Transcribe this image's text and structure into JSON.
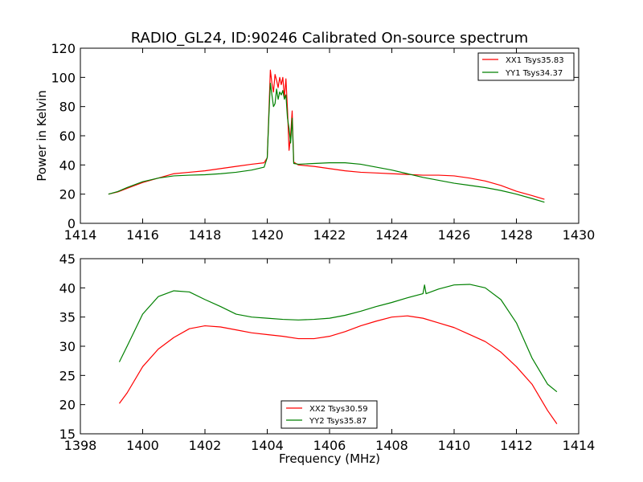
{
  "chart_data": [
    {
      "type": "line",
      "title": "RADIO_GL24, ID:90246 Calibrated On-source spectrum",
      "xlabel": "",
      "ylabel": "Power in Kelvin",
      "xlim": [
        1414,
        1430
      ],
      "ylim": [
        0,
        120
      ],
      "xticks": [
        "1414",
        "1416",
        "1418",
        "1420",
        "1422",
        "1424",
        "1426",
        "1428",
        "1430"
      ],
      "yticks": [
        "0",
        "20",
        "40",
        "60",
        "80",
        "100",
        "120"
      ],
      "grid": false,
      "legend_position": "top-right",
      "series": [
        {
          "name": "XX1 Tsys35.83",
          "color": "#ff0000",
          "points": [
            [
              1414.9,
              20
            ],
            [
              1415.2,
              21.5
            ],
            [
              1415.5,
              24
            ],
            [
              1416,
              28
            ],
            [
              1416.5,
              31
            ],
            [
              1417,
              34
            ],
            [
              1417.5,
              35
            ],
            [
              1418,
              36
            ],
            [
              1418.5,
              37.5
            ],
            [
              1419,
              39
            ],
            [
              1419.5,
              40.5
            ],
            [
              1419.9,
              41.5
            ],
            [
              1420.0,
              45
            ],
            [
              1420.05,
              75
            ],
            [
              1420.1,
              105
            ],
            [
              1420.15,
              96
            ],
            [
              1420.2,
              90
            ],
            [
              1420.25,
              102
            ],
            [
              1420.3,
              98
            ],
            [
              1420.35,
              93
            ],
            [
              1420.4,
              100
            ],
            [
              1420.45,
              95
            ],
            [
              1420.5,
              100
            ],
            [
              1420.55,
              86
            ],
            [
              1420.6,
              99
            ],
            [
              1420.65,
              78
            ],
            [
              1420.7,
              50
            ],
            [
              1420.75,
              60
            ],
            [
              1420.8,
              77
            ],
            [
              1420.85,
              42
            ],
            [
              1421,
              40
            ],
            [
              1421.5,
              39
            ],
            [
              1422,
              37.5
            ],
            [
              1422.5,
              36
            ],
            [
              1423,
              35
            ],
            [
              1423.5,
              34.5
            ],
            [
              1424,
              34
            ],
            [
              1424.5,
              33.5
            ],
            [
              1425,
              33
            ],
            [
              1425.5,
              33
            ],
            [
              1426,
              32.5
            ],
            [
              1426.5,
              31
            ],
            [
              1427,
              29
            ],
            [
              1427.5,
              26
            ],
            [
              1428,
              22
            ],
            [
              1428.5,
              19
            ],
            [
              1428.9,
              16.5
            ]
          ]
        },
        {
          "name": "YY1 Tsys34.37",
          "color": "#008000",
          "points": [
            [
              1414.9,
              20
            ],
            [
              1415.2,
              21.8
            ],
            [
              1415.5,
              24.5
            ],
            [
              1416,
              28.5
            ],
            [
              1416.5,
              31
            ],
            [
              1417,
              32.5
            ],
            [
              1417.5,
              33
            ],
            [
              1418,
              33.3
            ],
            [
              1418.5,
              34
            ],
            [
              1419,
              35
            ],
            [
              1419.5,
              36.5
            ],
            [
              1419.9,
              38.5
            ],
            [
              1420.0,
              45
            ],
            [
              1420.05,
              72
            ],
            [
              1420.1,
              96
            ],
            [
              1420.15,
              88
            ],
            [
              1420.2,
              80
            ],
            [
              1420.25,
              82
            ],
            [
              1420.3,
              92
            ],
            [
              1420.35,
              85
            ],
            [
              1420.4,
              90
            ],
            [
              1420.45,
              88
            ],
            [
              1420.5,
              91
            ],
            [
              1420.55,
              85
            ],
            [
              1420.6,
              88
            ],
            [
              1420.65,
              72
            ],
            [
              1420.7,
              65
            ],
            [
              1420.75,
              55
            ],
            [
              1420.8,
              72
            ],
            [
              1420.85,
              41
            ],
            [
              1421,
              40.5
            ],
            [
              1421.5,
              41
            ],
            [
              1422,
              41.5
            ],
            [
              1422.5,
              41.5
            ],
            [
              1423,
              40.5
            ],
            [
              1423.5,
              38.5
            ],
            [
              1424,
              36.5
            ],
            [
              1424.5,
              34
            ],
            [
              1425,
              31.5
            ],
            [
              1425.5,
              29.5
            ],
            [
              1426,
              27.5
            ],
            [
              1426.5,
              26
            ],
            [
              1427,
              24.5
            ],
            [
              1427.5,
              22.5
            ],
            [
              1428,
              20
            ],
            [
              1428.5,
              17
            ],
            [
              1428.9,
              14.5
            ]
          ]
        }
      ]
    },
    {
      "type": "line",
      "title": "",
      "xlabel": "Frequency (MHz)",
      "ylabel": "",
      "xlim": [
        1398,
        1414
      ],
      "ylim": [
        15,
        45
      ],
      "xticks": [
        "1398",
        "1400",
        "1402",
        "1404",
        "1406",
        "1408",
        "1410",
        "1412",
        "1414"
      ],
      "yticks": [
        "15",
        "20",
        "25",
        "30",
        "35",
        "40",
        "45"
      ],
      "grid": false,
      "legend_position": "bottom-center",
      "series": [
        {
          "name": "XX2 Tsys30.59",
          "color": "#ff0000",
          "points": [
            [
              1399.25,
              20.2
            ],
            [
              1399.5,
              22
            ],
            [
              1400,
              26.5
            ],
            [
              1400.5,
              29.5
            ],
            [
              1401,
              31.5
            ],
            [
              1401.5,
              33
            ],
            [
              1402,
              33.5
            ],
            [
              1402.5,
              33.3
            ],
            [
              1403,
              32.8
            ],
            [
              1403.5,
              32.3
            ],
            [
              1404,
              32
            ],
            [
              1404.5,
              31.7
            ],
            [
              1405,
              31.3
            ],
            [
              1405.5,
              31.3
            ],
            [
              1406,
              31.7
            ],
            [
              1406.5,
              32.5
            ],
            [
              1407,
              33.5
            ],
            [
              1407.5,
              34.3
            ],
            [
              1408,
              35
            ],
            [
              1408.5,
              35.2
            ],
            [
              1409,
              34.8
            ],
            [
              1409.5,
              34
            ],
            [
              1410,
              33.2
            ],
            [
              1410.5,
              32
            ],
            [
              1411,
              30.8
            ],
            [
              1411.5,
              29
            ],
            [
              1412,
              26.5
            ],
            [
              1412.5,
              23.5
            ],
            [
              1413,
              19
            ],
            [
              1413.3,
              16.7
            ]
          ]
        },
        {
          "name": "YY2 Tsys35.87",
          "color": "#008000",
          "points": [
            [
              1399.25,
              27.3
            ],
            [
              1399.5,
              30
            ],
            [
              1400,
              35.5
            ],
            [
              1400.5,
              38.5
            ],
            [
              1401,
              39.5
            ],
            [
              1401.5,
              39.3
            ],
            [
              1402,
              38
            ],
            [
              1402.5,
              36.8
            ],
            [
              1403,
              35.5
            ],
            [
              1403.5,
              35
            ],
            [
              1404,
              34.8
            ],
            [
              1404.5,
              34.6
            ],
            [
              1405,
              34.5
            ],
            [
              1405.5,
              34.6
            ],
            [
              1406,
              34.8
            ],
            [
              1406.5,
              35.3
            ],
            [
              1407,
              36
            ],
            [
              1407.5,
              36.8
            ],
            [
              1408,
              37.5
            ],
            [
              1408.5,
              38.3
            ],
            [
              1409,
              39
            ],
            [
              1409.05,
              40.5
            ],
            [
              1409.1,
              39
            ],
            [
              1409.5,
              39.8
            ],
            [
              1410,
              40.5
            ],
            [
              1410.5,
              40.6
            ],
            [
              1411,
              40
            ],
            [
              1411.5,
              38
            ],
            [
              1412,
              34
            ],
            [
              1412.5,
              28
            ],
            [
              1413,
              23.5
            ],
            [
              1413.3,
              22.2
            ]
          ]
        }
      ]
    }
  ]
}
